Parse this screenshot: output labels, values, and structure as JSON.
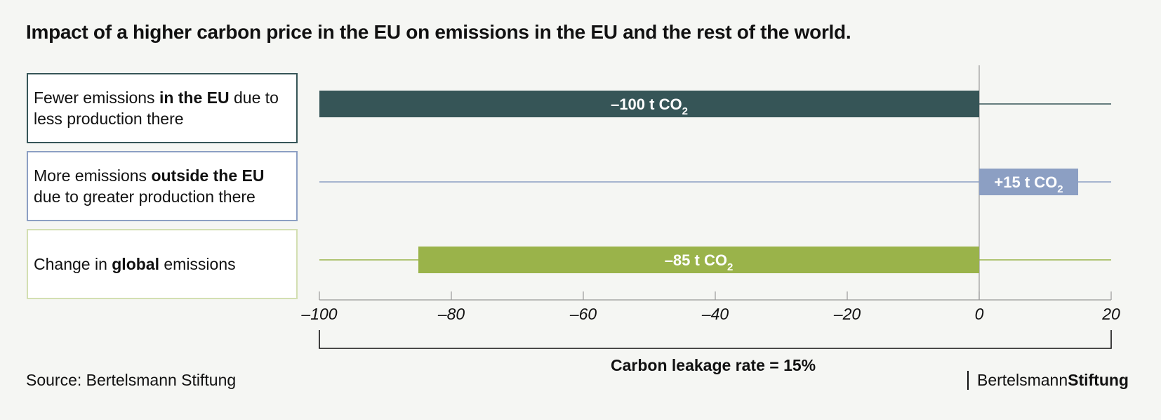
{
  "chart_data": {
    "type": "bar",
    "orientation": "horizontal",
    "title": "Impact of a higher carbon price in the EU on emissions in the EU and the rest of the world.",
    "xlim": [
      -100,
      20
    ],
    "xticks": [
      -100,
      -80,
      -60,
      -40,
      -20,
      0,
      20
    ],
    "tick_labels": [
      "–100",
      "–80",
      "–60",
      "–40",
      "–20",
      "0",
      "20"
    ],
    "grid": false,
    "categories": [
      {
        "pre": "Fewer emissions ",
        "bold": "in the EU",
        "post": " due to less production there",
        "value": -100,
        "label_main": "–100 t CO",
        "label_sub": "2",
        "color": "#365557"
      },
      {
        "pre": "More emissions ",
        "bold": "outside the EU",
        "post": " due to greater production there",
        "value": 15,
        "label_main": "+15 t CO",
        "label_sub": "2",
        "color": "#8c9fc3"
      },
      {
        "pre": "Change in ",
        "bold": "global",
        "post": " emissions",
        "value": -85,
        "label_main": "–85 t CO",
        "label_sub": "2",
        "color": "#9ab34a"
      }
    ],
    "annotation": "Carbon leakage rate = 15%"
  },
  "source": "Source: Bertelsmann Stiftung",
  "logo": {
    "light": "Bertelsmann",
    "bold": "Stiftung"
  },
  "colors": {
    "row_border": [
      "#365557",
      "#8c9fc3",
      "#d3dfb2"
    ],
    "guide_line": [
      "#365557",
      "#8c9fc3",
      "#9ab34a"
    ],
    "axis": "#999999"
  }
}
